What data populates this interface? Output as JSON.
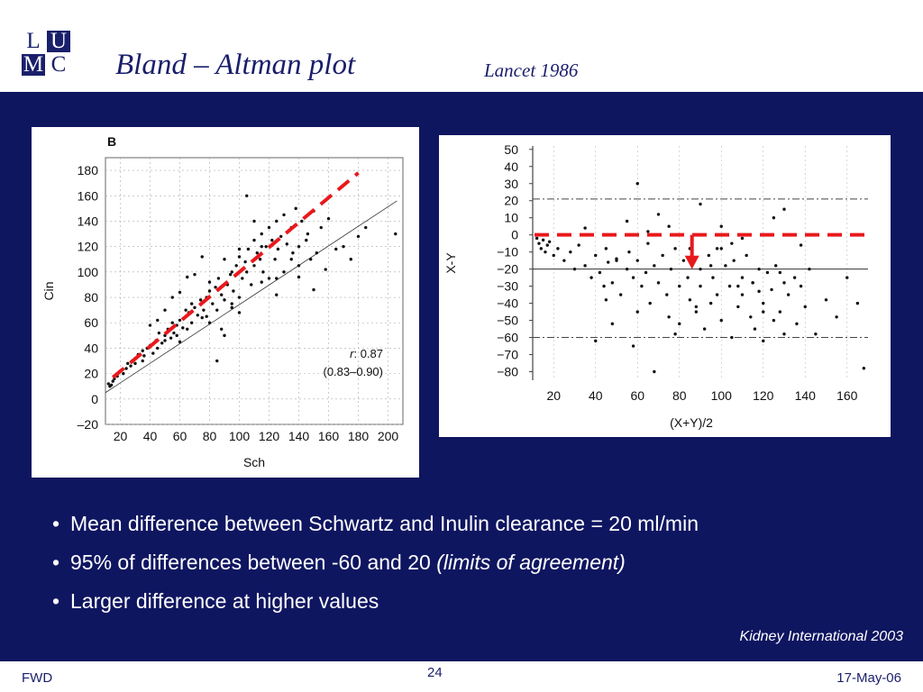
{
  "header": {
    "logo_letters": [
      "L",
      "U",
      "M",
      "C"
    ],
    "title": "Bland – Altman plot",
    "subtitle": "Lancet 1986"
  },
  "bullets": [
    {
      "text": "Mean difference between Schwartz and Inulin clearance = 20 ml/min",
      "em": ""
    },
    {
      "text": "95% of differences between -60 and 20 ",
      "em": "(limits of agreement)"
    },
    {
      "text": "Larger difference at higher values",
      "em": ""
    }
  ],
  "bullet_symbol": "•",
  "source": "Kidney International 2003",
  "footer": {
    "left": "FWD",
    "center": "24",
    "right": "17-May-06"
  },
  "colors": {
    "navy": "#0f1660",
    "brand": "#1a1f6b",
    "annotation_red": "#e8191c"
  },
  "chart_data": [
    {
      "type": "scatter",
      "panel_label": "B",
      "xlabel": "Sch",
      "ylabel": "Cin",
      "xlim": [
        10,
        210
      ],
      "ylim": [
        -20,
        190
      ],
      "xticks": [
        20,
        40,
        60,
        80,
        100,
        120,
        140,
        160,
        180,
        200
      ],
      "yticks": [
        -20,
        0,
        20,
        40,
        60,
        80,
        100,
        120,
        140,
        160,
        180
      ],
      "xtick_labels": [
        "20",
        "40",
        "60",
        "80",
        "100",
        "120",
        "140",
        "160",
        "180",
        "200"
      ],
      "ytick_labels": [
        "–20",
        "0",
        "20",
        "40",
        "60",
        "80",
        "100",
        "120",
        "140",
        "160",
        "180"
      ],
      "grid": true,
      "stats_r": "r",
      "stats_value": ": 0.87",
      "stats_ci": "(0.83–0.90)",
      "regression_line": {
        "x": [
          10,
          206
        ],
        "y": [
          5,
          156
        ]
      },
      "annotation_line_red_dashed": {
        "x": [
          15,
          180
        ],
        "y": [
          17,
          178
        ]
      },
      "points": {
        "x": [
          12,
          13,
          14,
          15,
          16,
          18,
          20,
          22,
          24,
          25,
          27,
          28,
          30,
          32,
          35,
          36,
          38,
          40,
          42,
          44,
          45,
          46,
          48,
          50,
          50,
          52,
          54,
          55,
          56,
          58,
          60,
          60,
          62,
          64,
          65,
          66,
          68,
          70,
          72,
          74,
          75,
          76,
          78,
          80,
          80,
          82,
          84,
          85,
          86,
          88,
          90,
          90,
          92,
          94,
          95,
          96,
          98,
          100,
          100,
          102,
          104,
          105,
          106,
          108,
          110,
          110,
          112,
          114,
          115,
          116,
          118,
          120,
          120,
          122,
          124,
          125,
          126,
          128,
          130,
          130,
          132,
          135,
          136,
          138,
          140,
          140,
          142,
          145,
          146,
          148,
          150,
          152,
          155,
          158,
          160,
          165,
          170,
          175,
          180,
          185,
          205,
          85,
          95,
          105,
          115,
          125,
          135,
          110,
          100,
          90,
          80,
          70,
          60,
          50,
          40,
          30,
          65,
          75,
          55,
          45,
          35,
          140,
          150,
          125,
          115,
          100,
          95,
          88,
          78,
          68,
          58
        ],
        "y": [
          12,
          10,
          11,
          14,
          16,
          18,
          22,
          20,
          24,
          28,
          26,
          30,
          32,
          35,
          38,
          34,
          40,
          42,
          36,
          46,
          40,
          52,
          44,
          50,
          46,
          55,
          48,
          60,
          52,
          58,
          45,
          62,
          56,
          70,
          55,
          68,
          60,
          72,
          66,
          78,
          64,
          70,
          80,
          60,
          85,
          75,
          88,
          70,
          95,
          82,
          110,
          78,
          90,
          98,
          100,
          85,
          105,
          80,
          112,
          95,
          108,
          100,
          118,
          90,
          125,
          105,
          115,
          110,
          130,
          100,
          120,
          135,
          95,
          125,
          110,
          140,
          118,
          128,
          100,
          145,
          122,
          135,
          115,
          150,
          120,
          105,
          140,
          125,
          130,
          110,
          148,
          115,
          135,
          102,
          142,
          118,
          120,
          110,
          128,
          135,
          130,
          30,
          75,
          160,
          120,
          95,
          110,
          140,
          118,
          50,
          92,
          98,
          84,
          70,
          58,
          28,
          96,
          112,
          80,
          62,
          30,
          96,
          86,
          82,
          92,
          68,
          72,
          55,
          65,
          75,
          50
        ]
      }
    },
    {
      "type": "scatter",
      "xlabel": "(X+Y)/2",
      "ylabel": "X-Y",
      "xlim": [
        10,
        170
      ],
      "ylim": [
        -85,
        52
      ],
      "xticks": [
        20,
        40,
        60,
        80,
        100,
        120,
        140,
        160
      ],
      "yticks": [
        50,
        40,
        30,
        20,
        10,
        0,
        -10,
        -20,
        -30,
        -40,
        -50,
        -60,
        -70,
        -80
      ],
      "xtick_labels": [
        "20",
        "40",
        "60",
        "80",
        "100",
        "120",
        "140",
        "160"
      ],
      "ytick_labels": [
        "50",
        "40",
        "30",
        "20",
        "10",
        "0",
        "−10",
        "−20",
        "−30",
        "−40",
        "−50",
        "−60",
        "−70",
        "−80"
      ],
      "reference_lines": {
        "mean": -20,
        "upper_limit": 21,
        "lower_limit": -60
      },
      "annotation_red_dashed_y": 0,
      "annotation_arrow": {
        "x": 86,
        "y_from": 0,
        "y_to": -19
      },
      "points": {
        "x": [
          12,
          13,
          14,
          15,
          16,
          17,
          18,
          20,
          22,
          25,
          28,
          30,
          32,
          35,
          38,
          40,
          42,
          44,
          45,
          46,
          48,
          50,
          52,
          55,
          56,
          58,
          60,
          60,
          62,
          64,
          65,
          66,
          68,
          70,
          72,
          74,
          75,
          76,
          78,
          80,
          80,
          82,
          84,
          85,
          86,
          88,
          90,
          90,
          92,
          94,
          95,
          96,
          98,
          100,
          100,
          102,
          104,
          105,
          106,
          108,
          110,
          110,
          112,
          114,
          115,
          116,
          118,
          120,
          120,
          122,
          124,
          125,
          126,
          128,
          130,
          130,
          132,
          135,
          136,
          138,
          140,
          142,
          145,
          150,
          155,
          160,
          165,
          168,
          85,
          95,
          105,
          115,
          125,
          75,
          65,
          55,
          45,
          35,
          110,
          100,
          120,
          130,
          90,
          70,
          60,
          50,
          40,
          98,
          108,
          118,
          128,
          138,
          88,
          78,
          68,
          58,
          48
        ],
        "y": [
          -2,
          -5,
          -8,
          -3,
          -10,
          -6,
          -4,
          -12,
          -8,
          -15,
          -10,
          -20,
          -6,
          -18,
          -25,
          -12,
          -22,
          -30,
          -8,
          -16,
          -28,
          -14,
          -35,
          -20,
          -10,
          -25,
          -45,
          -15,
          -30,
          -22,
          -5,
          -40,
          -18,
          -28,
          -12,
          -35,
          -48,
          -20,
          -8,
          -30,
          -52,
          -15,
          -25,
          -38,
          -10,
          -45,
          -20,
          -30,
          -55,
          -12,
          -40,
          -25,
          -35,
          -8,
          -50,
          -18,
          -30,
          -60,
          -15,
          -42,
          -25,
          -35,
          -12,
          -48,
          -28,
          -55,
          -20,
          -40,
          -62,
          -22,
          -32,
          -50,
          -18,
          -45,
          -28,
          -58,
          -35,
          -25,
          -52,
          -30,
          -42,
          -20,
          -58,
          -38,
          -48,
          -25,
          -40,
          -78,
          -8,
          -18,
          -5,
          -28,
          10,
          5,
          2,
          8,
          -38,
          4,
          -2,
          5,
          -45,
          15,
          18,
          12,
          30,
          -15,
          -62,
          -8,
          -30,
          -33,
          -22,
          -6,
          -42,
          -58,
          -80,
          -65,
          -52
        ]
      }
    }
  ]
}
